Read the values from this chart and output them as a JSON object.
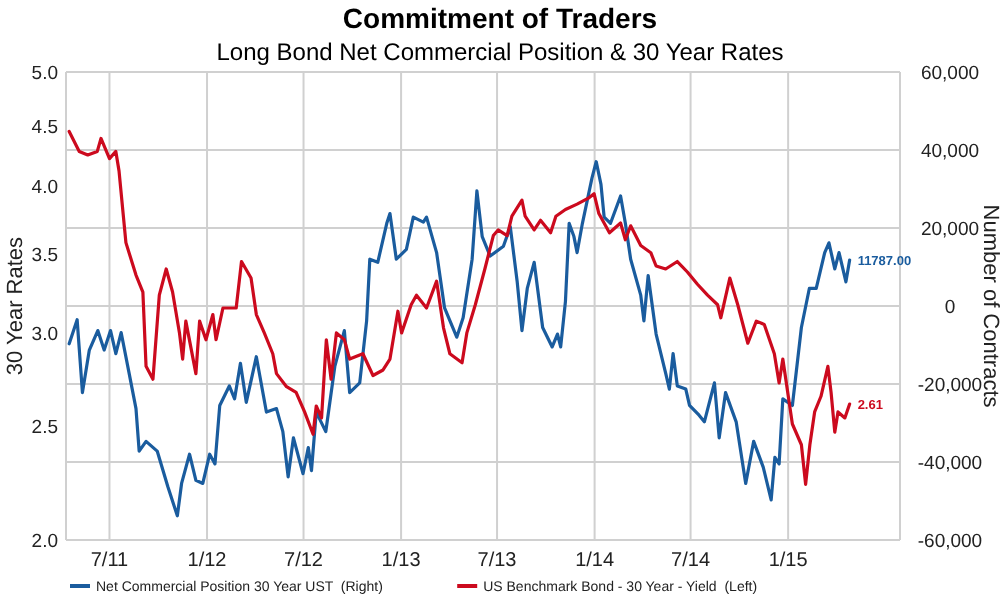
{
  "chart_data": {
    "type": "line",
    "title": "Commitment of Traders",
    "subtitle": "Long Bond Net Commercial Position & 30 Year Rates",
    "ylabel": "30 Year Rates",
    "y2label": "Number of Contracts",
    "log": true,
    "grid": true,
    "legend": "bottom",
    "xlim": [
      "2011-04-10",
      "2015-07-31"
    ],
    "xticks": [
      {
        "value": "2011-07-01",
        "label": "7/11"
      },
      {
        "value": "2012-01-01",
        "label": "1/12"
      },
      {
        "value": "2012-07-01",
        "label": "7/12"
      },
      {
        "value": "2013-01-01",
        "label": "1/13"
      },
      {
        "value": "2013-07-01",
        "label": "7/13"
      },
      {
        "value": "2014-01-01",
        "label": "1/14"
      },
      {
        "value": "2014-07-01",
        "label": "7/14"
      },
      {
        "value": "2015-01-01",
        "label": "1/15"
      }
    ],
    "ylim": [
      2,
      5
    ],
    "yticks": [
      {
        "value": 2,
        "label": "2.0"
      },
      {
        "value": 2.5,
        "label": "2.5"
      },
      {
        "value": 3,
        "label": "3.0"
      },
      {
        "value": 3.5,
        "label": "3.5"
      },
      {
        "value": 4,
        "label": "4.0"
      },
      {
        "value": 4.5,
        "label": "4.5"
      },
      {
        "value": 5,
        "label": "5.0"
      }
    ],
    "y2lim": [
      -60000,
      60000
    ],
    "y2ticks": [
      {
        "value": -60000,
        "label": "-60,000"
      },
      {
        "value": -40000,
        "label": "-40,000"
      },
      {
        "value": -20000,
        "label": "-20,000"
      },
      {
        "value": 0,
        "label": "0"
      },
      {
        "value": 20000,
        "label": "20,000"
      },
      {
        "value": 40000,
        "label": "40,000"
      },
      {
        "value": 60000,
        "label": "60,000"
      }
    ],
    "series": [
      {
        "name": "Net Commercial Position 30 Year UST  (Right)",
        "color": "#1a5c9e",
        "axis": "y2",
        "x": [
          "2011-04-16",
          "2011-05-01",
          "2011-05-11",
          "2011-05-24",
          "2011-06-09",
          "2011-06-21",
          "2011-07-03",
          "2011-07-13",
          "2011-07-23",
          "2011-08-07",
          "2011-08-20",
          "2011-08-26",
          "2011-09-08",
          "2011-09-29",
          "2011-10-19",
          "2011-11-06",
          "2011-11-14",
          "2011-11-29",
          "2011-12-11",
          "2011-12-24",
          "2012-01-06",
          "2012-01-16",
          "2012-01-25",
          "2012-02-12",
          "2012-02-22",
          "2012-03-04",
          "2012-03-15",
          "2012-04-03",
          "2012-04-22",
          "2012-05-11",
          "2012-05-23",
          "2012-06-02",
          "2012-06-12",
          "2012-06-30",
          "2012-07-10",
          "2012-07-16",
          "2012-07-25",
          "2012-08-12",
          "2012-08-29",
          "2012-09-16",
          "2012-09-26",
          "2012-10-15",
          "2012-10-28",
          "2012-11-03",
          "2012-11-18",
          "2012-12-05",
          "2012-12-11",
          "2012-12-23",
          "2013-01-11",
          "2013-01-24",
          "2013-02-12",
          "2013-02-18",
          "2013-03-09",
          "2013-03-24",
          "2013-04-16",
          "2013-04-28",
          "2013-05-15",
          "2013-05-24",
          "2013-06-03",
          "2013-06-18",
          "2013-07-13",
          "2013-07-26",
          "2013-08-08",
          "2013-08-17",
          "2013-08-27",
          "2013-09-09",
          "2013-09-25",
          "2013-10-13",
          "2013-10-23",
          "2013-10-29",
          "2013-11-07",
          "2013-11-14",
          "2013-11-23",
          "2013-11-29",
          "2013-12-09",
          "2013-12-27",
          "2014-01-04",
          "2014-01-13",
          "2014-01-19",
          "2014-01-31",
          "2014-02-19",
          "2014-02-28",
          "2014-03-10",
          "2014-03-29",
          "2014-04-04",
          "2014-04-12",
          "2014-04-27",
          "2014-05-15",
          "2014-05-22",
          "2014-05-29",
          "2014-06-06",
          "2014-06-22",
          "2014-06-29",
          "2014-07-17",
          "2014-07-27",
          "2014-08-15",
          "2014-08-24",
          "2014-09-05",
          "2014-09-25",
          "2014-10-13",
          "2014-10-28",
          "2014-11-15",
          "2014-11-30",
          "2014-12-07",
          "2014-12-15",
          "2014-12-22",
          "2015-01-09",
          "2015-01-26",
          "2015-02-10",
          "2015-02-23",
          "2015-03-11",
          "2015-03-19",
          "2015-03-30",
          "2015-04-07",
          "2015-04-20",
          "2015-04-27"
        ],
        "values": [
          -9700,
          -3500,
          -22200,
          -11300,
          -6300,
          -11300,
          -6300,
          -12200,
          -6800,
          -17200,
          -26300,
          -37200,
          -34700,
          -37200,
          -46300,
          -53800,
          -45500,
          -38000,
          -44700,
          -45500,
          -38000,
          -40500,
          -25500,
          -20500,
          -23800,
          -14700,
          -24700,
          -13000,
          -27200,
          -26300,
          -32200,
          -43800,
          -33800,
          -43000,
          -36300,
          -42200,
          -27200,
          -32200,
          -15500,
          -6300,
          -22200,
          -19700,
          -3800,
          12000,
          11200,
          21200,
          23700,
          12000,
          14500,
          22800,
          21500,
          22800,
          13700,
          -500,
          -8000,
          -3000,
          12000,
          29500,
          17800,
          12800,
          15300,
          20300,
          6200,
          -6300,
          4500,
          11200,
          -5500,
          -10500,
          -7200,
          -10500,
          1200,
          21200,
          17800,
          13700,
          21200,
          32800,
          37000,
          31200,
          22800,
          21200,
          28200,
          21200,
          12000,
          2800,
          -3800,
          7800,
          -7200,
          -17200,
          -21300,
          -12200,
          -20500,
          -21300,
          -25500,
          -28000,
          -29700,
          -19700,
          -33800,
          -22200,
          -29700,
          -45500,
          -34700,
          -41300,
          -49700,
          -38800,
          -40500,
          -23800,
          -25500,
          -5500,
          4500,
          4500,
          13700,
          16200,
          9500,
          13700,
          6200,
          11787
        ],
        "value_labels": [
          null,
          null,
          null,
          null,
          null,
          null,
          null,
          null,
          null,
          null,
          null,
          null,
          null,
          null,
          null,
          null,
          null,
          null,
          null,
          null,
          null,
          null,
          null,
          null,
          null,
          null,
          null,
          null,
          null,
          null,
          null,
          null,
          null,
          null,
          null,
          null,
          null,
          null,
          null,
          null,
          null,
          null,
          null,
          null,
          null,
          null,
          null,
          null,
          null,
          null,
          null,
          null,
          null,
          null,
          null,
          null,
          null,
          null,
          null,
          null,
          null,
          null,
          null,
          null,
          null,
          null,
          null,
          null,
          null,
          null,
          null,
          null,
          null,
          null,
          null,
          null,
          null,
          null,
          null,
          null,
          null,
          null,
          null,
          null,
          null,
          null,
          null,
          null,
          null,
          null,
          null,
          null,
          null,
          null,
          null,
          null,
          null,
          null,
          null,
          null,
          null,
          null,
          null,
          null,
          null,
          null,
          null,
          null,
          null,
          null,
          null,
          null,
          null,
          null,
          null,
          "11787.00"
        ]
      },
      {
        "name": "US Benchmark Bond - 30 Year - Yield  (Left)",
        "color": "#cc0a1e",
        "x": [
          "2011-04-16",
          "2011-05-05",
          "2011-05-21",
          "2011-06-08",
          "2011-06-15",
          "2011-07-01",
          "2011-07-13",
          "2011-07-19",
          "2011-08-01",
          "2011-08-20",
          "2011-09-02",
          "2011-09-08",
          "2011-09-21",
          "2011-10-03",
          "2011-10-16",
          "2011-10-28",
          "2011-11-10",
          "2011-11-16",
          "2011-11-22",
          "2011-12-11",
          "2011-12-18",
          "2011-12-30",
          "2012-01-12",
          "2012-01-18",
          "2012-01-31",
          "2012-02-25",
          "2012-03-06",
          "2012-03-24",
          "2012-04-03",
          "2012-04-18",
          "2012-05-04",
          "2012-05-11",
          "2012-05-30",
          "2012-06-17",
          "2012-07-03",
          "2012-07-19",
          "2012-07-25",
          "2012-08-04",
          "2012-08-13",
          "2012-08-22",
          "2012-09-01",
          "2012-09-16",
          "2012-09-26",
          "2012-10-21",
          "2012-11-09",
          "2012-11-28",
          "2012-12-11",
          "2012-12-26",
          "2013-01-02",
          "2013-01-20",
          "2013-01-30",
          "2013-02-18",
          "2013-03-09",
          "2013-03-22",
          "2013-04-03",
          "2013-04-26",
          "2013-05-05",
          "2013-05-21",
          "2013-06-08",
          "2013-06-24",
          "2013-07-03",
          "2013-07-20",
          "2013-07-29",
          "2013-08-17",
          "2013-08-23",
          "2013-09-09",
          "2013-09-21",
          "2013-10-10",
          "2013-10-20",
          "2013-11-07",
          "2013-11-29",
          "2013-12-22",
          "2013-12-31",
          "2014-01-09",
          "2014-01-29",
          "2014-02-19",
          "2014-02-28",
          "2014-03-10",
          "2014-03-29",
          "2014-04-17",
          "2014-04-27",
          "2014-05-15",
          "2014-06-06",
          "2014-06-25",
          "2014-07-14",
          "2014-08-02",
          "2014-08-21",
          "2014-08-27",
          "2014-09-13",
          "2014-09-28",
          "2014-10-17",
          "2014-11-02",
          "2014-11-17",
          "2014-12-06",
          "2014-12-15",
          "2014-12-22",
          "2015-01-09",
          "2015-01-26",
          "2015-02-03",
          "2015-02-11",
          "2015-02-20",
          "2015-03-04",
          "2015-03-17",
          "2015-03-23",
          "2015-03-30",
          "2015-04-05",
          "2015-04-18",
          "2015-04-27"
        ],
        "values": [
          4.45,
          4.28,
          4.25,
          4.28,
          4.39,
          4.22,
          4.28,
          4.12,
          3.58,
          3.36,
          3.25,
          2.81,
          2.74,
          3.23,
          3.4,
          3.25,
          3.0,
          2.85,
          3.07,
          2.77,
          3.07,
          2.96,
          3.11,
          2.96,
          3.15,
          3.15,
          3.45,
          3.34,
          3.11,
          3.0,
          2.88,
          2.77,
          2.7,
          2.67,
          2.57,
          2.46,
          2.6,
          2.54,
          2.96,
          2.74,
          3.0,
          2.96,
          2.85,
          2.88,
          2.76,
          2.79,
          2.85,
          3.13,
          3.0,
          3.17,
          3.23,
          3.15,
          3.32,
          3.03,
          2.88,
          2.83,
          3.0,
          3.17,
          3.4,
          3.63,
          3.67,
          3.63,
          3.77,
          3.89,
          3.77,
          3.67,
          3.74,
          3.65,
          3.77,
          3.82,
          3.86,
          3.91,
          3.94,
          3.79,
          3.65,
          3.72,
          3.6,
          3.7,
          3.56,
          3.51,
          3.42,
          3.4,
          3.45,
          3.38,
          3.3,
          3.23,
          3.17,
          3.09,
          3.34,
          3.17,
          2.94,
          3.07,
          3.05,
          2.88,
          2.72,
          2.85,
          2.51,
          2.41,
          2.23,
          2.41,
          2.57,
          2.65,
          2.81,
          2.67,
          2.47,
          2.57,
          2.54,
          2.61
        ],
        "value_labels": [
          null,
          null,
          null,
          null,
          null,
          null,
          null,
          null,
          null,
          null,
          null,
          null,
          null,
          null,
          null,
          null,
          null,
          null,
          null,
          null,
          null,
          null,
          null,
          null,
          null,
          null,
          null,
          null,
          null,
          null,
          null,
          null,
          null,
          null,
          null,
          null,
          null,
          null,
          null,
          null,
          null,
          null,
          null,
          null,
          null,
          null,
          null,
          null,
          null,
          null,
          null,
          null,
          null,
          null,
          null,
          null,
          null,
          null,
          null,
          null,
          null,
          null,
          null,
          null,
          null,
          null,
          null,
          null,
          null,
          null,
          null,
          null,
          null,
          null,
          null,
          null,
          null,
          null,
          null,
          null,
          null,
          null,
          null,
          null,
          null,
          null,
          null,
          null,
          null,
          null,
          null,
          null,
          null,
          null,
          null,
          null,
          null,
          null,
          null,
          null,
          null,
          null,
          null,
          null,
          null,
          null,
          null,
          "2.61"
        ]
      }
    ]
  }
}
